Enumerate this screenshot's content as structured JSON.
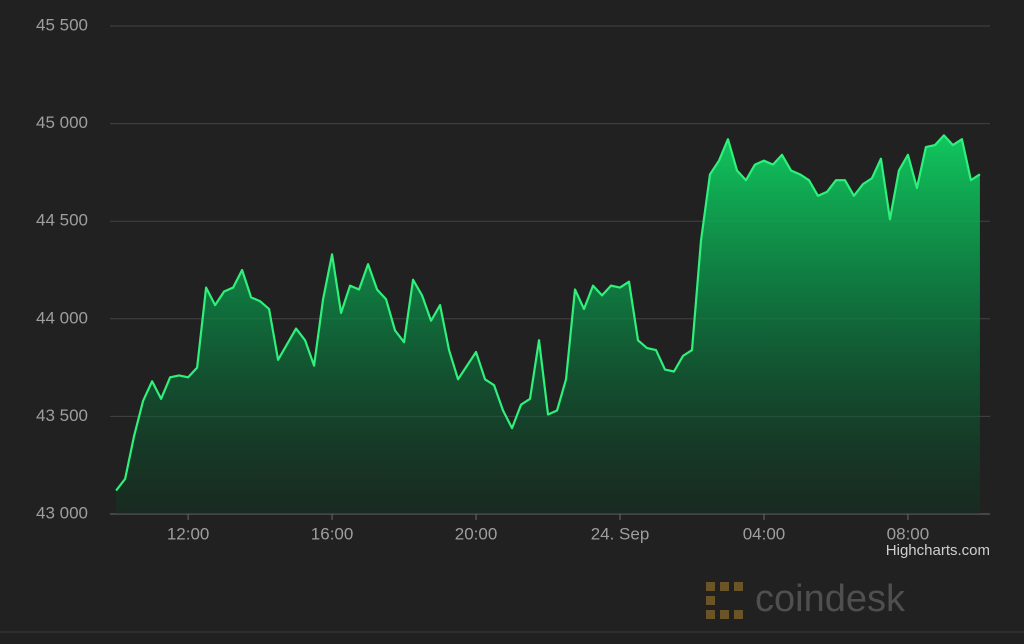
{
  "chart_data": {
    "type": "area",
    "x": [
      10,
      10.25,
      10.5,
      10.75,
      11,
      11.25,
      11.5,
      11.75,
      12,
      12.25,
      12.5,
      12.75,
      13,
      13.25,
      13.5,
      13.75,
      14,
      14.25,
      14.5,
      14.75,
      15,
      15.25,
      15.5,
      15.75,
      16,
      16.25,
      16.5,
      16.75,
      17,
      17.25,
      17.5,
      17.75,
      18,
      18.25,
      18.5,
      18.75,
      19,
      19.25,
      19.5,
      19.75,
      20,
      20.25,
      20.5,
      20.75,
      21,
      21.25,
      21.5,
      21.75,
      22,
      22.25,
      22.5,
      22.75,
      23,
      23.25,
      23.5,
      23.75,
      24,
      24.25,
      24.5,
      24.75,
      25,
      25.25,
      25.5,
      25.75,
      26,
      26.25,
      26.5,
      26.75,
      27,
      27.25,
      27.5,
      27.75,
      28,
      28.25,
      28.5,
      28.75,
      29,
      29.25,
      29.5,
      29.75,
      30,
      30.25,
      30.5,
      30.75,
      31,
      31.25,
      31.5,
      31.75,
      32,
      32.25,
      32.5,
      32.75,
      33,
      33.25,
      33.5,
      33.75,
      34
    ],
    "values": [
      43120,
      43180,
      43400,
      43580,
      43680,
      43590,
      43700,
      43710,
      43700,
      43750,
      44160,
      44070,
      44140,
      44160,
      44250,
      44110,
      44090,
      44050,
      43790,
      43870,
      43950,
      43890,
      43760,
      44100,
      44330,
      44030,
      44170,
      44150,
      44280,
      44150,
      44100,
      43940,
      43880,
      44200,
      44120,
      43990,
      44070,
      43840,
      43690,
      43760,
      43830,
      43690,
      43660,
      43530,
      43440,
      43560,
      43590,
      43890,
      43510,
      43530,
      43690,
      44150,
      44050,
      44170,
      44120,
      44170,
      44160,
      44190,
      43890,
      43850,
      43840,
      43740,
      43730,
      43810,
      43840,
      44400,
      44740,
      44810,
      44920,
      44760,
      44710,
      44790,
      44810,
      44790,
      44840,
      44760,
      44740,
      44710,
      44630,
      44650,
      44710,
      44710,
      44630,
      44690,
      44720,
      44820,
      44510,
      44760,
      44840,
      44670,
      44880,
      44890,
      44940,
      44890,
      44920,
      44710,
      44740
    ],
    "color": "#2ef07a",
    "xlim": [
      9.83,
      34.28
    ],
    "xticks": [
      {
        "value": 12,
        "label": "12:00"
      },
      {
        "value": 16,
        "label": "16:00"
      },
      {
        "value": 20,
        "label": "20:00"
      },
      {
        "value": 24,
        "label": "24. Sep"
      },
      {
        "value": 28,
        "label": "04:00"
      },
      {
        "value": 32,
        "label": "08:00"
      }
    ],
    "ylim": [
      43000,
      45500
    ],
    "yticks": [
      {
        "value": 43000,
        "label": "43 000"
      },
      {
        "value": 43500,
        "label": "43 500"
      },
      {
        "value": 44000,
        "label": "44 000"
      },
      {
        "value": 44500,
        "label": "44 500"
      },
      {
        "value": 45000,
        "label": "45 000"
      },
      {
        "value": 45500,
        "label": "45 500"
      }
    ],
    "grid": true,
    "credits": "Highcharts.com",
    "watermark": "coindesk"
  }
}
